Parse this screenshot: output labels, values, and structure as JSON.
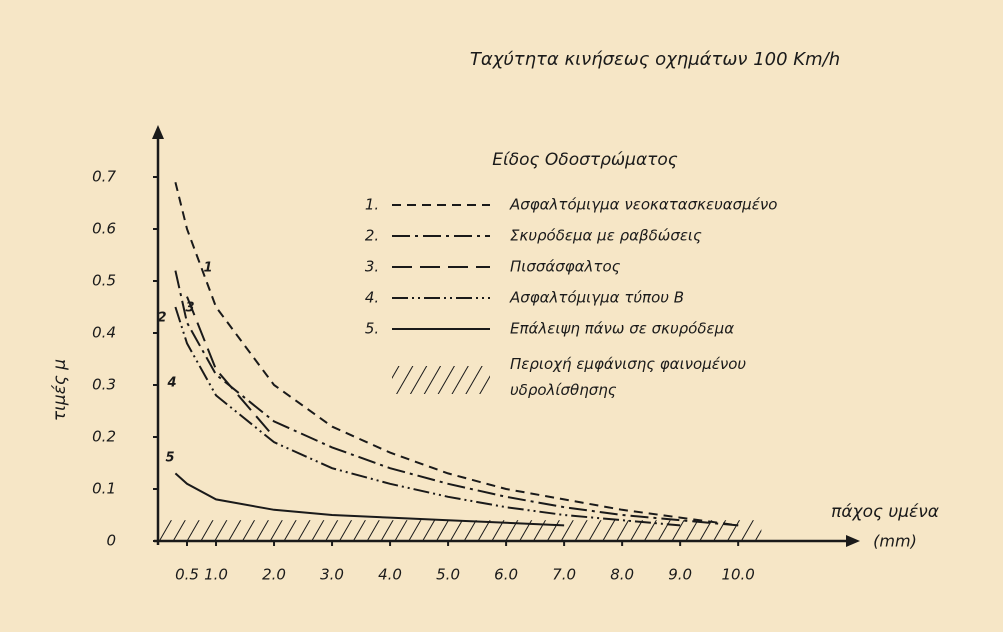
{
  "chart_data": {
    "type": "line",
    "title": "Ταχύτητα κινήσεως οχημάτων 100 Km/h",
    "ylabel": "τιμές μ",
    "xlabel": "πάχος υμένα",
    "xunit": "(mm)",
    "legend_title": "Είδος Οδοστρώματος",
    "x": [
      0.3,
      0.5,
      1,
      2,
      3,
      4,
      5,
      6,
      7,
      8,
      9,
      10
    ],
    "series": [
      {
        "key": "1.",
        "curve_label": "1",
        "name": "Ασφαλτόμιγμα νεοκατασκευασμένο",
        "color": "#1a1a1a",
        "dash": "9 6",
        "values": [
          0.69,
          0.6,
          0.45,
          0.3,
          0.22,
          0.17,
          0.13,
          0.1,
          0.08,
          0.06,
          0.045,
          0.03
        ]
      },
      {
        "key": "2.",
        "curve_label": "2",
        "name": "Σκυρόδεμα με ραβδώσεις",
        "color": "#1a1a1a",
        "dash": "18 5 3 5",
        "values": [
          0.52,
          0.42,
          0.32,
          0.23,
          0.18,
          0.14,
          0.11,
          0.085,
          0.065,
          0.05,
          0.04,
          0.03
        ]
      },
      {
        "key": "3.",
        "curve_label": "3",
        "name": "Πισσάσφαλτος",
        "color": "#1a1a1a",
        "dash": "20 8",
        "values": [
          null,
          0.47,
          0.33,
          0.2,
          null,
          null,
          null,
          null,
          null,
          null,
          null,
          null
        ]
      },
      {
        "key": "4.",
        "curve_label": "4",
        "name": "Ασφαλτόμιγμα τύπου Β",
        "color": "#1a1a1a",
        "dash": "16 4 2 4 2 4",
        "values": [
          0.45,
          0.38,
          0.28,
          0.19,
          0.14,
          0.11,
          0.085,
          0.065,
          0.05,
          0.04,
          0.03,
          null
        ]
      },
      {
        "key": "5.",
        "curve_label": "5",
        "name": "Επάλειψη πάνω σε σκυρόδεμα",
        "color": "#1a1a1a",
        "dash": "none",
        "values": [
          0.13,
          0.11,
          0.08,
          0.06,
          0.05,
          0.045,
          0.04,
          0.035,
          0.03,
          null,
          null,
          null
        ]
      }
    ],
    "region": {
      "name": "Περιοχή εμφάνισης φαινομένου υδρολίσθησης",
      "x": [
        0,
        10.4
      ],
      "y": [
        0,
        0.04
      ]
    },
    "xlim": [
      0,
      12.1
    ],
    "ylim": [
      0,
      0.8
    ],
    "xticks": [
      {
        "value": 0.5,
        "label": "0.5"
      },
      {
        "value": 1,
        "label": "1.0"
      },
      {
        "value": 2,
        "label": "2.0"
      },
      {
        "value": 3,
        "label": "3.0"
      },
      {
        "value": 4,
        "label": "4.0"
      },
      {
        "value": 5,
        "label": "5.0"
      },
      {
        "value": 6,
        "label": "6.0"
      },
      {
        "value": 7,
        "label": "7.0"
      },
      {
        "value": 8,
        "label": "8.0"
      },
      {
        "value": 9,
        "label": "9.0"
      },
      {
        "value": 10,
        "label": "10.0"
      }
    ],
    "yticks": [
      0,
      0.1,
      0.2,
      0.3,
      0.4,
      0.5,
      0.6,
      0.7
    ],
    "grid": false
  }
}
